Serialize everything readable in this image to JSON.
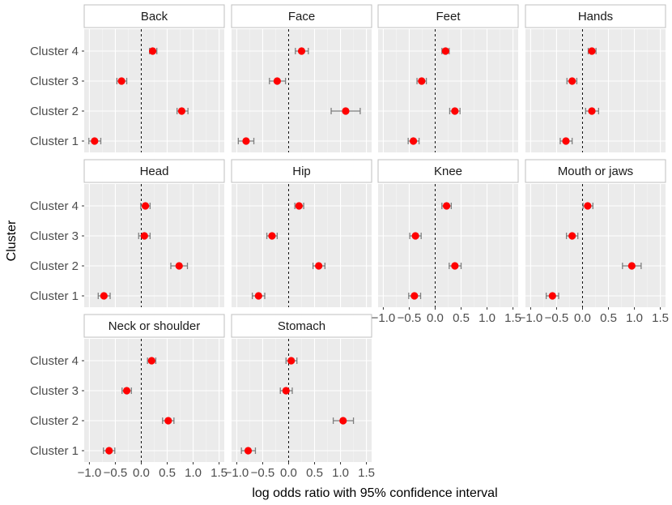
{
  "chart_data": {
    "type": "scatter",
    "subtype": "forest-plot-faceted",
    "xlabel": "log odds ratio with 95% confidence interval",
    "ylabel": "Cluster",
    "xlim": [
      -1.1,
      1.6
    ],
    "x_ticks": [
      -1.0,
      -0.5,
      0.0,
      0.5,
      1.0,
      1.5
    ],
    "x_tick_labels": [
      "−1.0",
      "−0.5",
      "0.0",
      "0.5",
      "1.0",
      "1.5"
    ],
    "reference_line": 0,
    "categories": [
      "Cluster 1",
      "Cluster 2",
      "Cluster 3",
      "Cluster 4"
    ],
    "colors": {
      "point": "#ff0000",
      "errorbar": "#7f7f7f",
      "panel": "#ebebeb"
    },
    "panels": [
      {
        "title": "Back",
        "points": [
          {
            "cluster": "Cluster 4",
            "est": 0.22,
            "lo": 0.16,
            "hi": 0.3
          },
          {
            "cluster": "Cluster 3",
            "est": -0.38,
            "lo": -0.47,
            "hi": -0.28
          },
          {
            "cluster": "Cluster 2",
            "est": 0.78,
            "lo": 0.69,
            "hi": 0.9
          },
          {
            "cluster": "Cluster 1",
            "est": -0.9,
            "lo": -1.01,
            "hi": -0.78
          }
        ]
      },
      {
        "title": "Face",
        "points": [
          {
            "cluster": "Cluster 4",
            "est": 0.25,
            "lo": 0.13,
            "hi": 0.38
          },
          {
            "cluster": "Cluster 3",
            "est": -0.22,
            "lo": -0.37,
            "hi": -0.06
          },
          {
            "cluster": "Cluster 2",
            "est": 1.1,
            "lo": 0.82,
            "hi": 1.38
          },
          {
            "cluster": "Cluster 1",
            "est": -0.82,
            "lo": -0.97,
            "hi": -0.67
          }
        ]
      },
      {
        "title": "Feet",
        "points": [
          {
            "cluster": "Cluster 4",
            "est": 0.2,
            "lo": 0.13,
            "hi": 0.27
          },
          {
            "cluster": "Cluster 3",
            "est": -0.26,
            "lo": -0.35,
            "hi": -0.17
          },
          {
            "cluster": "Cluster 2",
            "est": 0.38,
            "lo": 0.28,
            "hi": 0.48
          },
          {
            "cluster": "Cluster 1",
            "est": -0.42,
            "lo": -0.52,
            "hi": -0.31
          }
        ]
      },
      {
        "title": "Hands",
        "points": [
          {
            "cluster": "Cluster 4",
            "est": 0.18,
            "lo": 0.11,
            "hi": 0.26
          },
          {
            "cluster": "Cluster 3",
            "est": -0.2,
            "lo": -0.3,
            "hi": -0.11
          },
          {
            "cluster": "Cluster 2",
            "est": 0.18,
            "lo": 0.06,
            "hi": 0.31
          },
          {
            "cluster": "Cluster 1",
            "est": -0.32,
            "lo": -0.43,
            "hi": -0.2
          }
        ]
      },
      {
        "title": "Head",
        "points": [
          {
            "cluster": "Cluster 4",
            "est": 0.08,
            "lo": -0.01,
            "hi": 0.17
          },
          {
            "cluster": "Cluster 3",
            "est": 0.06,
            "lo": -0.05,
            "hi": 0.17
          },
          {
            "cluster": "Cluster 2",
            "est": 0.73,
            "lo": 0.57,
            "hi": 0.89
          },
          {
            "cluster": "Cluster 1",
            "est": -0.72,
            "lo": -0.83,
            "hi": -0.6
          }
        ]
      },
      {
        "title": "Hip",
        "points": [
          {
            "cluster": "Cluster 4",
            "est": 0.2,
            "lo": 0.12,
            "hi": 0.29
          },
          {
            "cluster": "Cluster 3",
            "est": -0.32,
            "lo": -0.42,
            "hi": -0.22
          },
          {
            "cluster": "Cluster 2",
            "est": 0.58,
            "lo": 0.47,
            "hi": 0.7
          },
          {
            "cluster": "Cluster 1",
            "est": -0.58,
            "lo": -0.7,
            "hi": -0.46
          }
        ]
      },
      {
        "title": "Knee",
        "points": [
          {
            "cluster": "Cluster 4",
            "est": 0.22,
            "lo": 0.13,
            "hi": 0.31
          },
          {
            "cluster": "Cluster 3",
            "est": -0.38,
            "lo": -0.49,
            "hi": -0.27
          },
          {
            "cluster": "Cluster 2",
            "est": 0.38,
            "lo": 0.27,
            "hi": 0.5
          },
          {
            "cluster": "Cluster 1",
            "est": -0.4,
            "lo": -0.51,
            "hi": -0.28
          }
        ]
      },
      {
        "title": "Mouth or jaws",
        "points": [
          {
            "cluster": "Cluster 4",
            "est": 0.1,
            "lo": 0.01,
            "hi": 0.2
          },
          {
            "cluster": "Cluster 3",
            "est": -0.2,
            "lo": -0.31,
            "hi": -0.09
          },
          {
            "cluster": "Cluster 2",
            "est": 0.95,
            "lo": 0.77,
            "hi": 1.13
          },
          {
            "cluster": "Cluster 1",
            "est": -0.58,
            "lo": -0.7,
            "hi": -0.46
          }
        ]
      },
      {
        "title": "Neck or shoulder",
        "points": [
          {
            "cluster": "Cluster 4",
            "est": 0.2,
            "lo": 0.12,
            "hi": 0.28
          },
          {
            "cluster": "Cluster 3",
            "est": -0.28,
            "lo": -0.37,
            "hi": -0.19
          },
          {
            "cluster": "Cluster 2",
            "est": 0.52,
            "lo": 0.41,
            "hi": 0.63
          },
          {
            "cluster": "Cluster 1",
            "est": -0.62,
            "lo": -0.73,
            "hi": -0.51
          }
        ]
      },
      {
        "title": "Stomach",
        "points": [
          {
            "cluster": "Cluster 4",
            "est": 0.05,
            "lo": -0.05,
            "hi": 0.16
          },
          {
            "cluster": "Cluster 3",
            "est": -0.05,
            "lo": -0.16,
            "hi": 0.07
          },
          {
            "cluster": "Cluster 2",
            "est": 1.05,
            "lo": 0.86,
            "hi": 1.25
          },
          {
            "cluster": "Cluster 1",
            "est": -0.78,
            "lo": -0.91,
            "hi": -0.64
          }
        ]
      }
    ]
  }
}
